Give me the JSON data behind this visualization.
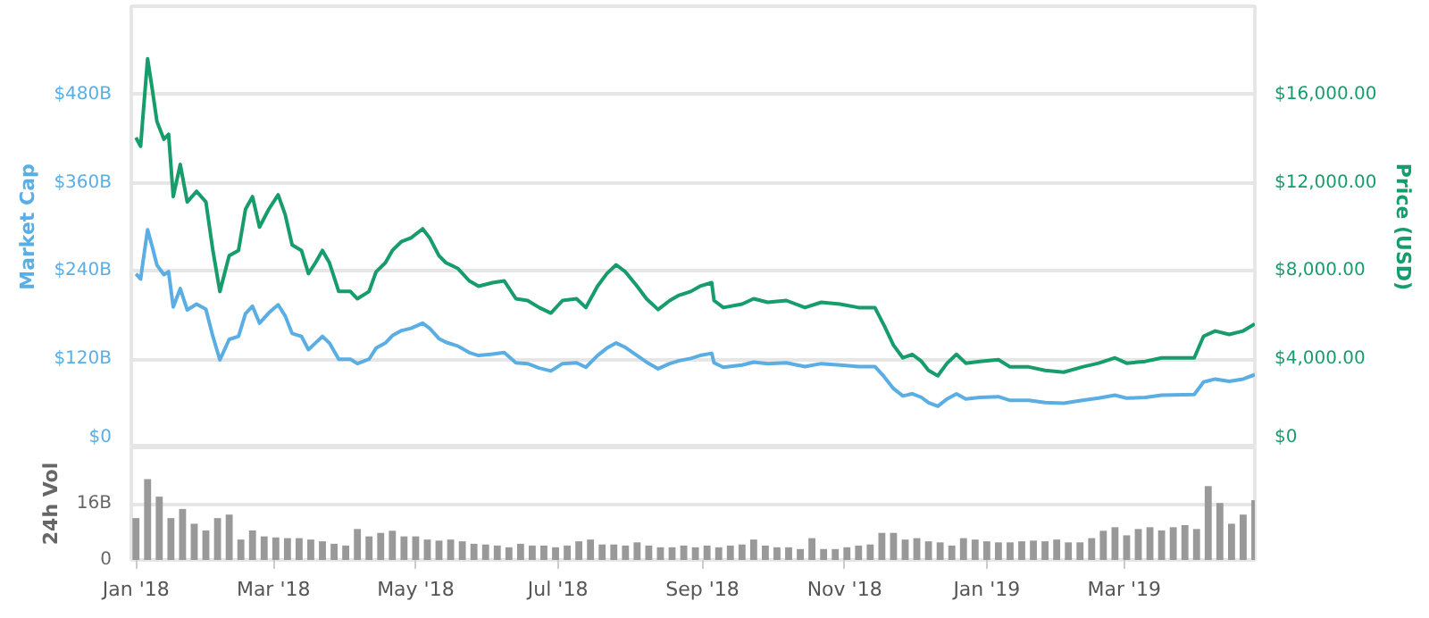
{
  "chart_data": [
    {
      "type": "line",
      "x": [
        "2018-01-01",
        "2018-01-03",
        "2018-01-04",
        "2018-01-06",
        "2018-01-08",
        "2018-01-10",
        "2018-01-13",
        "2018-01-15",
        "2018-01-17",
        "2018-01-20",
        "2018-01-23",
        "2018-01-27",
        "2018-01-31",
        "2018-02-03",
        "2018-02-06",
        "2018-02-10",
        "2018-02-14",
        "2018-02-17",
        "2018-02-20",
        "2018-02-23",
        "2018-02-27",
        "2018-03-03",
        "2018-03-06",
        "2018-03-09",
        "2018-03-13",
        "2018-03-16",
        "2018-03-19",
        "2018-03-22",
        "2018-03-25",
        "2018-03-29",
        "2018-04-03",
        "2018-04-06",
        "2018-04-11",
        "2018-04-14",
        "2018-04-18",
        "2018-04-21",
        "2018-04-25",
        "2018-04-29",
        "2018-05-04",
        "2018-05-07",
        "2018-05-11",
        "2018-05-14",
        "2018-05-19",
        "2018-05-24",
        "2018-05-28",
        "2018-06-03",
        "2018-06-08",
        "2018-06-13",
        "2018-06-18",
        "2018-06-23",
        "2018-06-28",
        "2018-07-03",
        "2018-07-09",
        "2018-07-13",
        "2018-07-18",
        "2018-07-22",
        "2018-07-26",
        "2018-07-30",
        "2018-08-04",
        "2018-08-08",
        "2018-08-13",
        "2018-08-18",
        "2018-08-22",
        "2018-08-27",
        "2018-08-31",
        "2018-09-05",
        "2018-09-06",
        "2018-09-10",
        "2018-09-18",
        "2018-09-23",
        "2018-09-29",
        "2018-10-07",
        "2018-10-15",
        "2018-10-22",
        "2018-10-30",
        "2018-11-07",
        "2018-11-14",
        "2018-11-18",
        "2018-11-22",
        "2018-11-26",
        "2018-11-30",
        "2018-12-04",
        "2018-12-07",
        "2018-12-11",
        "2018-12-15",
        "2018-12-19",
        "2018-12-23",
        "2018-12-29",
        "2019-01-06",
        "2019-01-11",
        "2019-01-19",
        "2019-01-26",
        "2019-02-03",
        "2019-02-11",
        "2019-02-18",
        "2019-02-25",
        "2019-03-02",
        "2019-03-10",
        "2019-03-17",
        "2019-03-31",
        "2019-04-04",
        "2019-04-09",
        "2019-04-15",
        "2019-04-21",
        "2019-04-26"
      ],
      "series": [
        {
          "color": "#5aaee3",
          "values": [
            236,
            229,
            252,
            296,
            273,
            248,
            235,
            239,
            191,
            216,
            187,
            195,
            188,
            151,
            119,
            147,
            151,
            182,
            192,
            169,
            183,
            194,
            179,
            155,
            151,
            133,
            142,
            151,
            142,
            120,
            120,
            114,
            120,
            135,
            142,
            152,
            159,
            162,
            169,
            162,
            148,
            143,
            138,
            129,
            125,
            127,
            129,
            115,
            114,
            108,
            104,
            114,
            115,
            109,
            125,
            135,
            142,
            136,
            125,
            116,
            107,
            114,
            118,
            121,
            125,
            128,
            115,
            109,
            112,
            116,
            114,
            115,
            110,
            114,
            112,
            110,
            110,
            96,
            80,
            70,
            73,
            68,
            61,
            56,
            66,
            73,
            66,
            68,
            69,
            64,
            64,
            61,
            60,
            64,
            67,
            71,
            67,
            68,
            71,
            72,
            89,
            93,
            90,
            93,
            99
          ]
        },
        {
          "color": "#179c6b",
          "axis": "y2",
          "values": [
            14050,
            13650,
            15000,
            17620,
            16240,
            14780,
            13970,
            14200,
            11370,
            12830,
            11130,
            11610,
            11130,
            8930,
            7070,
            8690,
            8930,
            10800,
            11370,
            9990,
            10800,
            11450,
            10560,
            9180,
            8930,
            7880,
            8370,
            8930,
            8370,
            7070,
            7070,
            6740,
            7070,
            7960,
            8370,
            8930,
            9340,
            9500,
            9910,
            9500,
            8690,
            8370,
            8120,
            7550,
            7310,
            7470,
            7550,
            6740,
            6660,
            6340,
            6090,
            6660,
            6740,
            6340,
            7310,
            7880,
            8280,
            7960,
            7310,
            6740,
            6250,
            6660,
            6900,
            7070,
            7310,
            7470,
            6660,
            6340,
            6500,
            6740,
            6580,
            6660,
            6340,
            6580,
            6500,
            6340,
            6340,
            5520,
            4630,
            4060,
            4220,
            3900,
            3490,
            3250,
            3820,
            4220,
            3820,
            3900,
            3980,
            3650,
            3650,
            3490,
            3410,
            3650,
            3820,
            4060,
            3820,
            3900,
            4060,
            4060,
            5040,
            5280,
            5120,
            5280,
            5600
          ]
        }
      ],
      "xlim": [
        "2017-12-30",
        "2019-04-26"
      ],
      "ylabel": "Market Cap",
      "ylim": [
        0,
        600
      ],
      "yticks": [
        {
          "value": 0,
          "label": "$0"
        },
        {
          "value": 120,
          "label": "$120B"
        },
        {
          "value": 240,
          "label": "$240B"
        },
        {
          "value": 360,
          "label": "$360B"
        },
        {
          "value": 480,
          "label": "$480B"
        },
        {
          "value": 600,
          "label": null
        }
      ],
      "y2label": "Price (USD)",
      "y2lim": [
        0,
        20000
      ],
      "y2ticks": [
        {
          "value": 0,
          "label": "$0"
        },
        {
          "value": 4000,
          "label": "$4,000.00"
        },
        {
          "value": 8000,
          "label": "$8,000.00"
        },
        {
          "value": 12000,
          "label": "$12,000.00"
        },
        {
          "value": 16000,
          "label": "$16,000.00"
        },
        {
          "value": 20000,
          "label": null
        }
      ],
      "grid": "y",
      "tick_labels": "y"
    },
    {
      "type": "bar",
      "x": [
        "2018-01-01",
        "2018-01-06",
        "2018-01-11",
        "2018-01-16",
        "2018-01-21",
        "2018-01-26",
        "2018-01-31",
        "2018-02-05",
        "2018-02-10",
        "2018-02-15",
        "2018-02-20",
        "2018-02-25",
        "2018-03-02",
        "2018-03-07",
        "2018-03-12",
        "2018-03-17",
        "2018-03-22",
        "2018-03-27",
        "2018-04-01",
        "2018-04-06",
        "2018-04-11",
        "2018-04-16",
        "2018-04-21",
        "2018-04-26",
        "2018-05-01",
        "2018-05-06",
        "2018-05-11",
        "2018-05-16",
        "2018-05-21",
        "2018-05-26",
        "2018-05-31",
        "2018-06-05",
        "2018-06-10",
        "2018-06-15",
        "2018-06-20",
        "2018-06-25",
        "2018-06-30",
        "2018-07-05",
        "2018-07-10",
        "2018-07-15",
        "2018-07-20",
        "2018-07-25",
        "2018-07-30",
        "2018-08-04",
        "2018-08-09",
        "2018-08-14",
        "2018-08-19",
        "2018-08-24",
        "2018-08-29",
        "2018-09-03",
        "2018-09-08",
        "2018-09-13",
        "2018-09-18",
        "2018-09-23",
        "2018-09-28",
        "2018-10-03",
        "2018-10-08",
        "2018-10-13",
        "2018-10-18",
        "2018-10-23",
        "2018-10-28",
        "2018-11-02",
        "2018-11-07",
        "2018-11-12",
        "2018-11-17",
        "2018-11-22",
        "2018-11-27",
        "2018-12-02",
        "2018-12-07",
        "2018-12-12",
        "2018-12-17",
        "2018-12-22",
        "2018-12-27",
        "2019-01-01",
        "2019-01-06",
        "2019-01-11",
        "2019-01-16",
        "2019-01-21",
        "2019-01-26",
        "2019-01-31",
        "2019-02-05",
        "2019-02-10",
        "2019-02-15",
        "2019-02-20",
        "2019-02-25",
        "2019-03-02",
        "2019-03-07",
        "2019-03-12",
        "2019-03-17",
        "2019-03-22",
        "2019-03-27",
        "2019-04-01",
        "2019-04-06",
        "2019-04-11",
        "2019-04-16",
        "2019-04-21",
        "2019-04-26"
      ],
      "values": [
        11.9,
        23,
        18,
        11.9,
        14.5,
        10.3,
        8.4,
        11.9,
        12.9,
        5.8,
        8.4,
        6.7,
        6.4,
        6.2,
        6.2,
        5.8,
        5.3,
        4.6,
        4.1,
        8.8,
        6.7,
        7.7,
        8.3,
        6.7,
        6.7,
        5.8,
        5.5,
        5.8,
        5.3,
        4.6,
        4.4,
        4.1,
        3.6,
        4.6,
        4.1,
        4.1,
        3.6,
        4.1,
        5.3,
        5.8,
        4.4,
        4.4,
        4.1,
        5.0,
        4.1,
        3.6,
        3.6,
        4.1,
        3.6,
        4.1,
        3.6,
        4.1,
        4.4,
        5.8,
        4.1,
        3.6,
        3.6,
        3.1,
        6.2,
        3.1,
        3.1,
        3.6,
        4.1,
        4.4,
        7.7,
        7.7,
        5.8,
        6.2,
        5.3,
        5.0,
        4.1,
        6.2,
        5.8,
        5.3,
        5.0,
        5.0,
        5.3,
        5.5,
        5.3,
        5.8,
        5.0,
        5.0,
        6.2,
        8.3,
        9.3,
        7.0,
        8.8,
        9.3,
        8.4,
        9.3,
        9.9,
        8.8,
        21,
        16.2,
        10.3,
        12.9,
        17
      ],
      "color": "#999999",
      "xlim": [
        "2017-12-30",
        "2019-04-26"
      ],
      "xticks": [
        {
          "value": "2018-01-01",
          "label": "Jan '18"
        },
        {
          "value": "2018-03-01",
          "label": "Mar '18"
        },
        {
          "value": "2018-05-01",
          "label": "May '18"
        },
        {
          "value": "2018-07-01",
          "label": "Jul '18"
        },
        {
          "value": "2018-09-01",
          "label": "Sep '18"
        },
        {
          "value": "2018-11-01",
          "label": "Nov '18"
        },
        {
          "value": "2019-01-01",
          "label": "Jan '19"
        },
        {
          "value": "2019-03-01",
          "label": "Mar '19"
        }
      ],
      "ylabel": "24h Vol",
      "ylim": [
        0,
        32
      ],
      "yticks": [
        {
          "value": 0,
          "label": "0"
        },
        {
          "value": 16,
          "label": "16B"
        },
        {
          "value": 32,
          "label": null
        }
      ],
      "grid": "y"
    }
  ]
}
